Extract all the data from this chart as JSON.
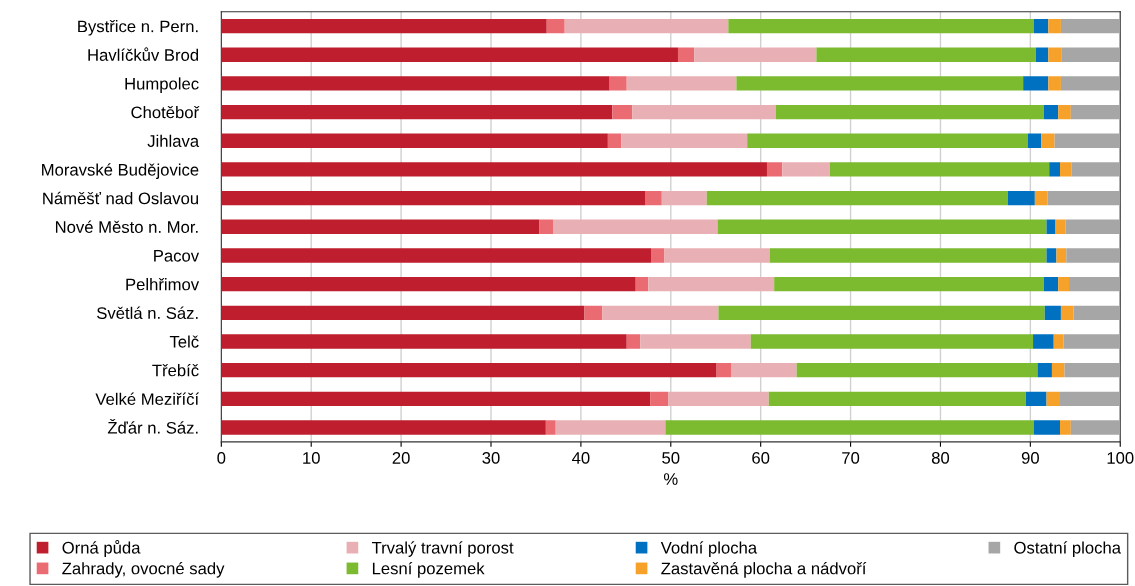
{
  "chart_data": {
    "type": "bar",
    "orientation": "horizontal",
    "stacked": true,
    "xlabel": "%",
    "xlim": [
      0,
      100
    ],
    "xticks": [
      0,
      10,
      20,
      30,
      40,
      50,
      60,
      70,
      80,
      90,
      100
    ],
    "grid": "x",
    "legend": "bottom",
    "categories": [
      "Bystřice n. Pern.",
      "Havlíčkův Brod",
      "Humpolec",
      "Chotěboř",
      "Jihlava",
      "Moravské Budějovice",
      "Náměšť nad Oslavou",
      "Nové Město n. Mor.",
      "Pacov",
      "Pelhřimov",
      "Světlá n. Sáz.",
      "Telč",
      "Třebíč",
      "Velké Meziříčí",
      "Žďár n. Sáz."
    ],
    "series": [
      {
        "name": "Orná půda",
        "color": "#be1e2d",
        "values": [
          36.2,
          50.8,
          43.2,
          43.5,
          43.0,
          60.7,
          47.2,
          35.4,
          47.8,
          46.1,
          40.4,
          45.1,
          55.1,
          47.7,
          36.1
        ]
      },
      {
        "name": "Zahrady, ovocné sady",
        "color": "#eb6b73",
        "values": [
          2.0,
          1.8,
          1.9,
          2.2,
          1.5,
          1.7,
          1.8,
          1.5,
          1.5,
          1.4,
          2.0,
          1.5,
          1.6,
          2.0,
          1.1
        ]
      },
      {
        "name": "Trvalý travní porost",
        "color": "#e8b0b4",
        "values": [
          18.2,
          13.6,
          12.2,
          16.0,
          14.0,
          5.3,
          5.0,
          18.3,
          11.7,
          14.0,
          12.9,
          12.3,
          7.3,
          11.2,
          12.2
        ]
      },
      {
        "name": "Lesní pozemek",
        "color": "#7cba2f",
        "values": [
          34.0,
          24.4,
          31.9,
          29.8,
          31.2,
          24.4,
          33.5,
          36.6,
          30.8,
          30.0,
          36.3,
          31.4,
          26.8,
          28.6,
          41.0
        ]
      },
      {
        "name": "Vodní plocha",
        "color": "#0070c0",
        "values": [
          1.6,
          1.4,
          2.8,
          1.6,
          1.5,
          1.2,
          3.0,
          1.0,
          1.1,
          1.6,
          1.8,
          2.3,
          1.6,
          2.3,
          2.9
        ]
      },
      {
        "name": "Zastavěná plocha a nádvoří",
        "color": "#f6a12a",
        "values": [
          1.4,
          1.5,
          1.4,
          1.4,
          1.5,
          1.3,
          1.4,
          1.1,
          1.1,
          1.2,
          1.4,
          1.1,
          1.4,
          1.5,
          1.2
        ]
      },
      {
        "name": "Ostatní plocha",
        "color": "#a6a6a6",
        "values": [
          6.6,
          6.5,
          6.6,
          5.5,
          7.3,
          5.4,
          8.1,
          6.1,
          6.0,
          5.7,
          5.2,
          6.3,
          6.2,
          6.7,
          5.5
        ]
      }
    ]
  }
}
